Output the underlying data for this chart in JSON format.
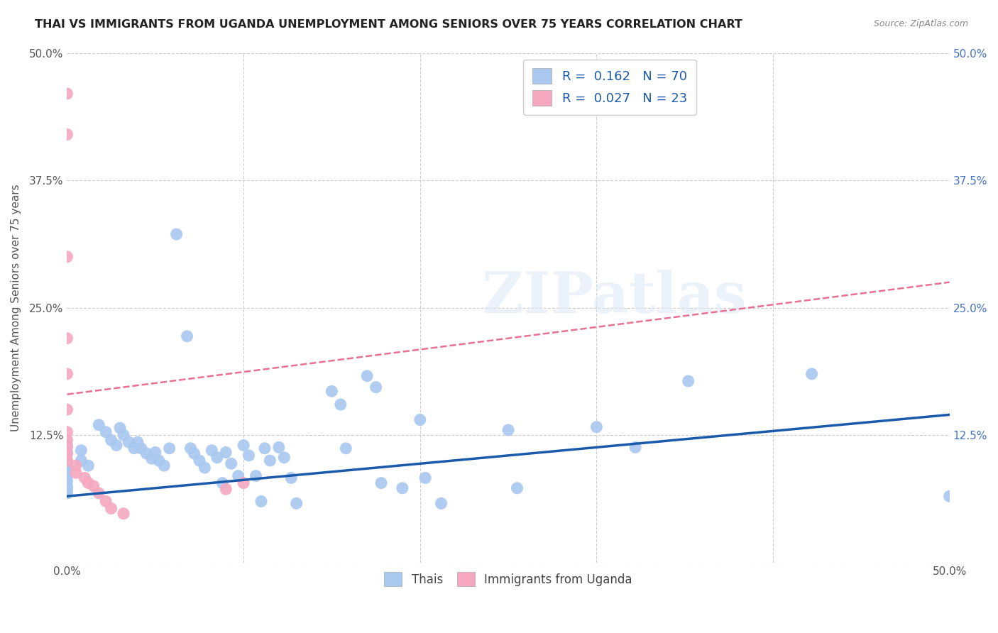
{
  "title": "THAI VS IMMIGRANTS FROM UGANDA UNEMPLOYMENT AMONG SENIORS OVER 75 YEARS CORRELATION CHART",
  "source": "Source: ZipAtlas.com",
  "ylabel": "Unemployment Among Seniors over 75 years",
  "xlim": [
    0.0,
    0.5
  ],
  "ylim": [
    0.0,
    0.5
  ],
  "xticks": [
    0.0,
    0.1,
    0.2,
    0.3,
    0.4,
    0.5
  ],
  "xticklabels": [
    "0.0%",
    "",
    "",
    "",
    "",
    "50.0%"
  ],
  "yticks": [
    0.0,
    0.125,
    0.25,
    0.375,
    0.5
  ],
  "yticklabels_left": [
    "",
    "12.5%",
    "25.0%",
    "37.5%",
    "50.0%"
  ],
  "yticklabels_right": [
    "",
    "12.5%",
    "25.0%",
    "37.5%",
    "50.0%"
  ],
  "watermark": "ZIPatlas",
  "thai_color": "#a8c8f0",
  "uganda_color": "#f5a8c0",
  "thai_line_color": "#1a5aaa",
  "uganda_line_color": "#e87090",
  "thai_line": [
    [
      0.0,
      0.065
    ],
    [
      0.5,
      0.145
    ]
  ],
  "uganda_line": [
    [
      0.0,
      0.165
    ],
    [
      0.5,
      0.275
    ]
  ],
  "background_color": "#ffffff",
  "grid_color": "#cccccc",
  "legend_r1": "R =  0.162   N = 70",
  "legend_r2": "R =  0.027   N = 23",
  "thai_scatter": [
    [
      0.0,
      0.115
    ],
    [
      0.0,
      0.108
    ],
    [
      0.0,
      0.1
    ],
    [
      0.0,
      0.095
    ],
    [
      0.0,
      0.09
    ],
    [
      0.0,
      0.085
    ],
    [
      0.0,
      0.08
    ],
    [
      0.0,
      0.075
    ],
    [
      0.0,
      0.072
    ],
    [
      0.0,
      0.068
    ],
    [
      0.008,
      0.11
    ],
    [
      0.008,
      0.1
    ],
    [
      0.012,
      0.095
    ],
    [
      0.018,
      0.135
    ],
    [
      0.022,
      0.128
    ],
    [
      0.025,
      0.12
    ],
    [
      0.028,
      0.115
    ],
    [
      0.03,
      0.132
    ],
    [
      0.032,
      0.125
    ],
    [
      0.035,
      0.118
    ],
    [
      0.038,
      0.112
    ],
    [
      0.04,
      0.118
    ],
    [
      0.042,
      0.112
    ],
    [
      0.045,
      0.107
    ],
    [
      0.048,
      0.102
    ],
    [
      0.05,
      0.108
    ],
    [
      0.052,
      0.1
    ],
    [
      0.055,
      0.095
    ],
    [
      0.058,
      0.112
    ],
    [
      0.062,
      0.322
    ],
    [
      0.068,
      0.222
    ],
    [
      0.07,
      0.112
    ],
    [
      0.072,
      0.107
    ],
    [
      0.075,
      0.1
    ],
    [
      0.078,
      0.093
    ],
    [
      0.082,
      0.11
    ],
    [
      0.085,
      0.103
    ],
    [
      0.088,
      0.078
    ],
    [
      0.09,
      0.108
    ],
    [
      0.093,
      0.097
    ],
    [
      0.097,
      0.085
    ],
    [
      0.1,
      0.115
    ],
    [
      0.103,
      0.105
    ],
    [
      0.107,
      0.085
    ],
    [
      0.11,
      0.06
    ],
    [
      0.112,
      0.112
    ],
    [
      0.115,
      0.1
    ],
    [
      0.12,
      0.113
    ],
    [
      0.123,
      0.103
    ],
    [
      0.127,
      0.083
    ],
    [
      0.13,
      0.058
    ],
    [
      0.15,
      0.168
    ],
    [
      0.155,
      0.155
    ],
    [
      0.158,
      0.112
    ],
    [
      0.17,
      0.183
    ],
    [
      0.175,
      0.172
    ],
    [
      0.178,
      0.078
    ],
    [
      0.19,
      0.073
    ],
    [
      0.2,
      0.14
    ],
    [
      0.203,
      0.083
    ],
    [
      0.212,
      0.058
    ],
    [
      0.25,
      0.13
    ],
    [
      0.255,
      0.073
    ],
    [
      0.3,
      0.133
    ],
    [
      0.322,
      0.113
    ],
    [
      0.352,
      0.178
    ],
    [
      0.422,
      0.185
    ],
    [
      0.5,
      0.065
    ]
  ],
  "uganda_scatter": [
    [
      0.0,
      0.46
    ],
    [
      0.0,
      0.42
    ],
    [
      0.0,
      0.3
    ],
    [
      0.0,
      0.22
    ],
    [
      0.0,
      0.185
    ],
    [
      0.0,
      0.15
    ],
    [
      0.0,
      0.128
    ],
    [
      0.0,
      0.12
    ],
    [
      0.0,
      0.113
    ],
    [
      0.0,
      0.107
    ],
    [
      0.0,
      0.1
    ],
    [
      0.005,
      0.095
    ],
    [
      0.005,
      0.088
    ],
    [
      0.01,
      0.083
    ],
    [
      0.012,
      0.078
    ],
    [
      0.015,
      0.075
    ],
    [
      0.018,
      0.068
    ],
    [
      0.022,
      0.06
    ],
    [
      0.025,
      0.053
    ],
    [
      0.032,
      0.048
    ],
    [
      0.09,
      0.072
    ],
    [
      0.1,
      0.078
    ]
  ]
}
